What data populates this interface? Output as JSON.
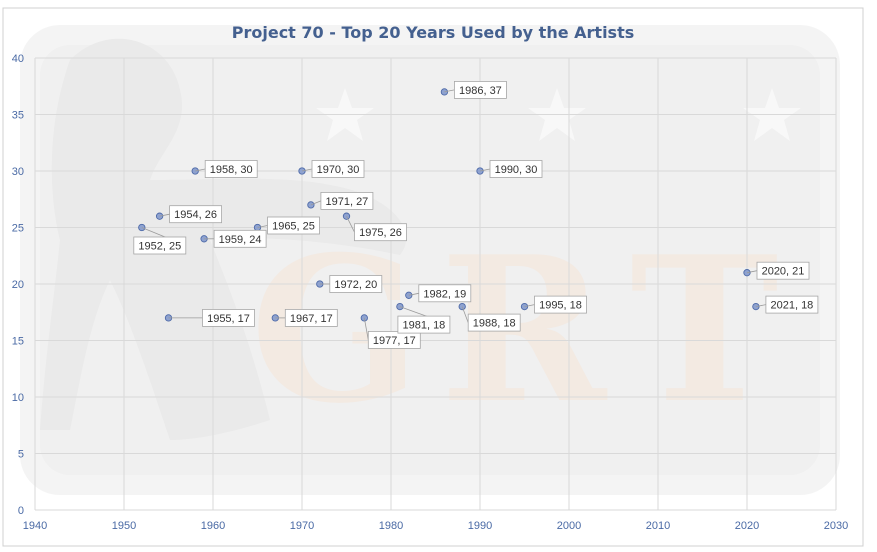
{
  "chart_data": {
    "type": "scatter",
    "title": "Project 70 - Top 20 Years Used by the Artists",
    "xlabel": "",
    "ylabel": "",
    "xlim": [
      1940,
      2030
    ],
    "ylim": [
      0,
      40
    ],
    "x_ticks": [
      "1940",
      "1950",
      "1960",
      "1970",
      "1980",
      "1990",
      "2000",
      "2010",
      "2020",
      "2030"
    ],
    "y_ticks": [
      "0",
      "5",
      "10",
      "15",
      "20",
      "25",
      "30",
      "35",
      "40"
    ],
    "grid": true,
    "legend": "none",
    "marker_color": "#8ea2d0",
    "points": [
      {
        "x": 1952,
        "y": 25,
        "label": "1952, 25"
      },
      {
        "x": 1954,
        "y": 26,
        "label": "1954, 26"
      },
      {
        "x": 1955,
        "y": 17,
        "label": "1955, 17"
      },
      {
        "x": 1958,
        "y": 30,
        "label": "1958, 30"
      },
      {
        "x": 1959,
        "y": 24,
        "label": "1959, 24"
      },
      {
        "x": 1965,
        "y": 25,
        "label": "1965, 25"
      },
      {
        "x": 1967,
        "y": 17,
        "label": "1967, 17"
      },
      {
        "x": 1970,
        "y": 30,
        "label": "1970, 30"
      },
      {
        "x": 1971,
        "y": 27,
        "label": "1971, 27"
      },
      {
        "x": 1972,
        "y": 20,
        "label": "1972, 20"
      },
      {
        "x": 1975,
        "y": 26,
        "label": "1975, 26"
      },
      {
        "x": 1977,
        "y": 17,
        "label": "1977, 17"
      },
      {
        "x": 1981,
        "y": 18,
        "label": "1981, 18"
      },
      {
        "x": 1982,
        "y": 19,
        "label": "1982, 19"
      },
      {
        "x": 1986,
        "y": 37,
        "label": "1986, 37"
      },
      {
        "x": 1988,
        "y": 18,
        "label": "1988, 18"
      },
      {
        "x": 1990,
        "y": 30,
        "label": "1990, 30"
      },
      {
        "x": 1995,
        "y": 18,
        "label": "1995, 18"
      },
      {
        "x": 2020,
        "y": 21,
        "label": "2020, 21"
      },
      {
        "x": 2021,
        "y": 18,
        "label": "2021, 18"
      }
    ]
  }
}
